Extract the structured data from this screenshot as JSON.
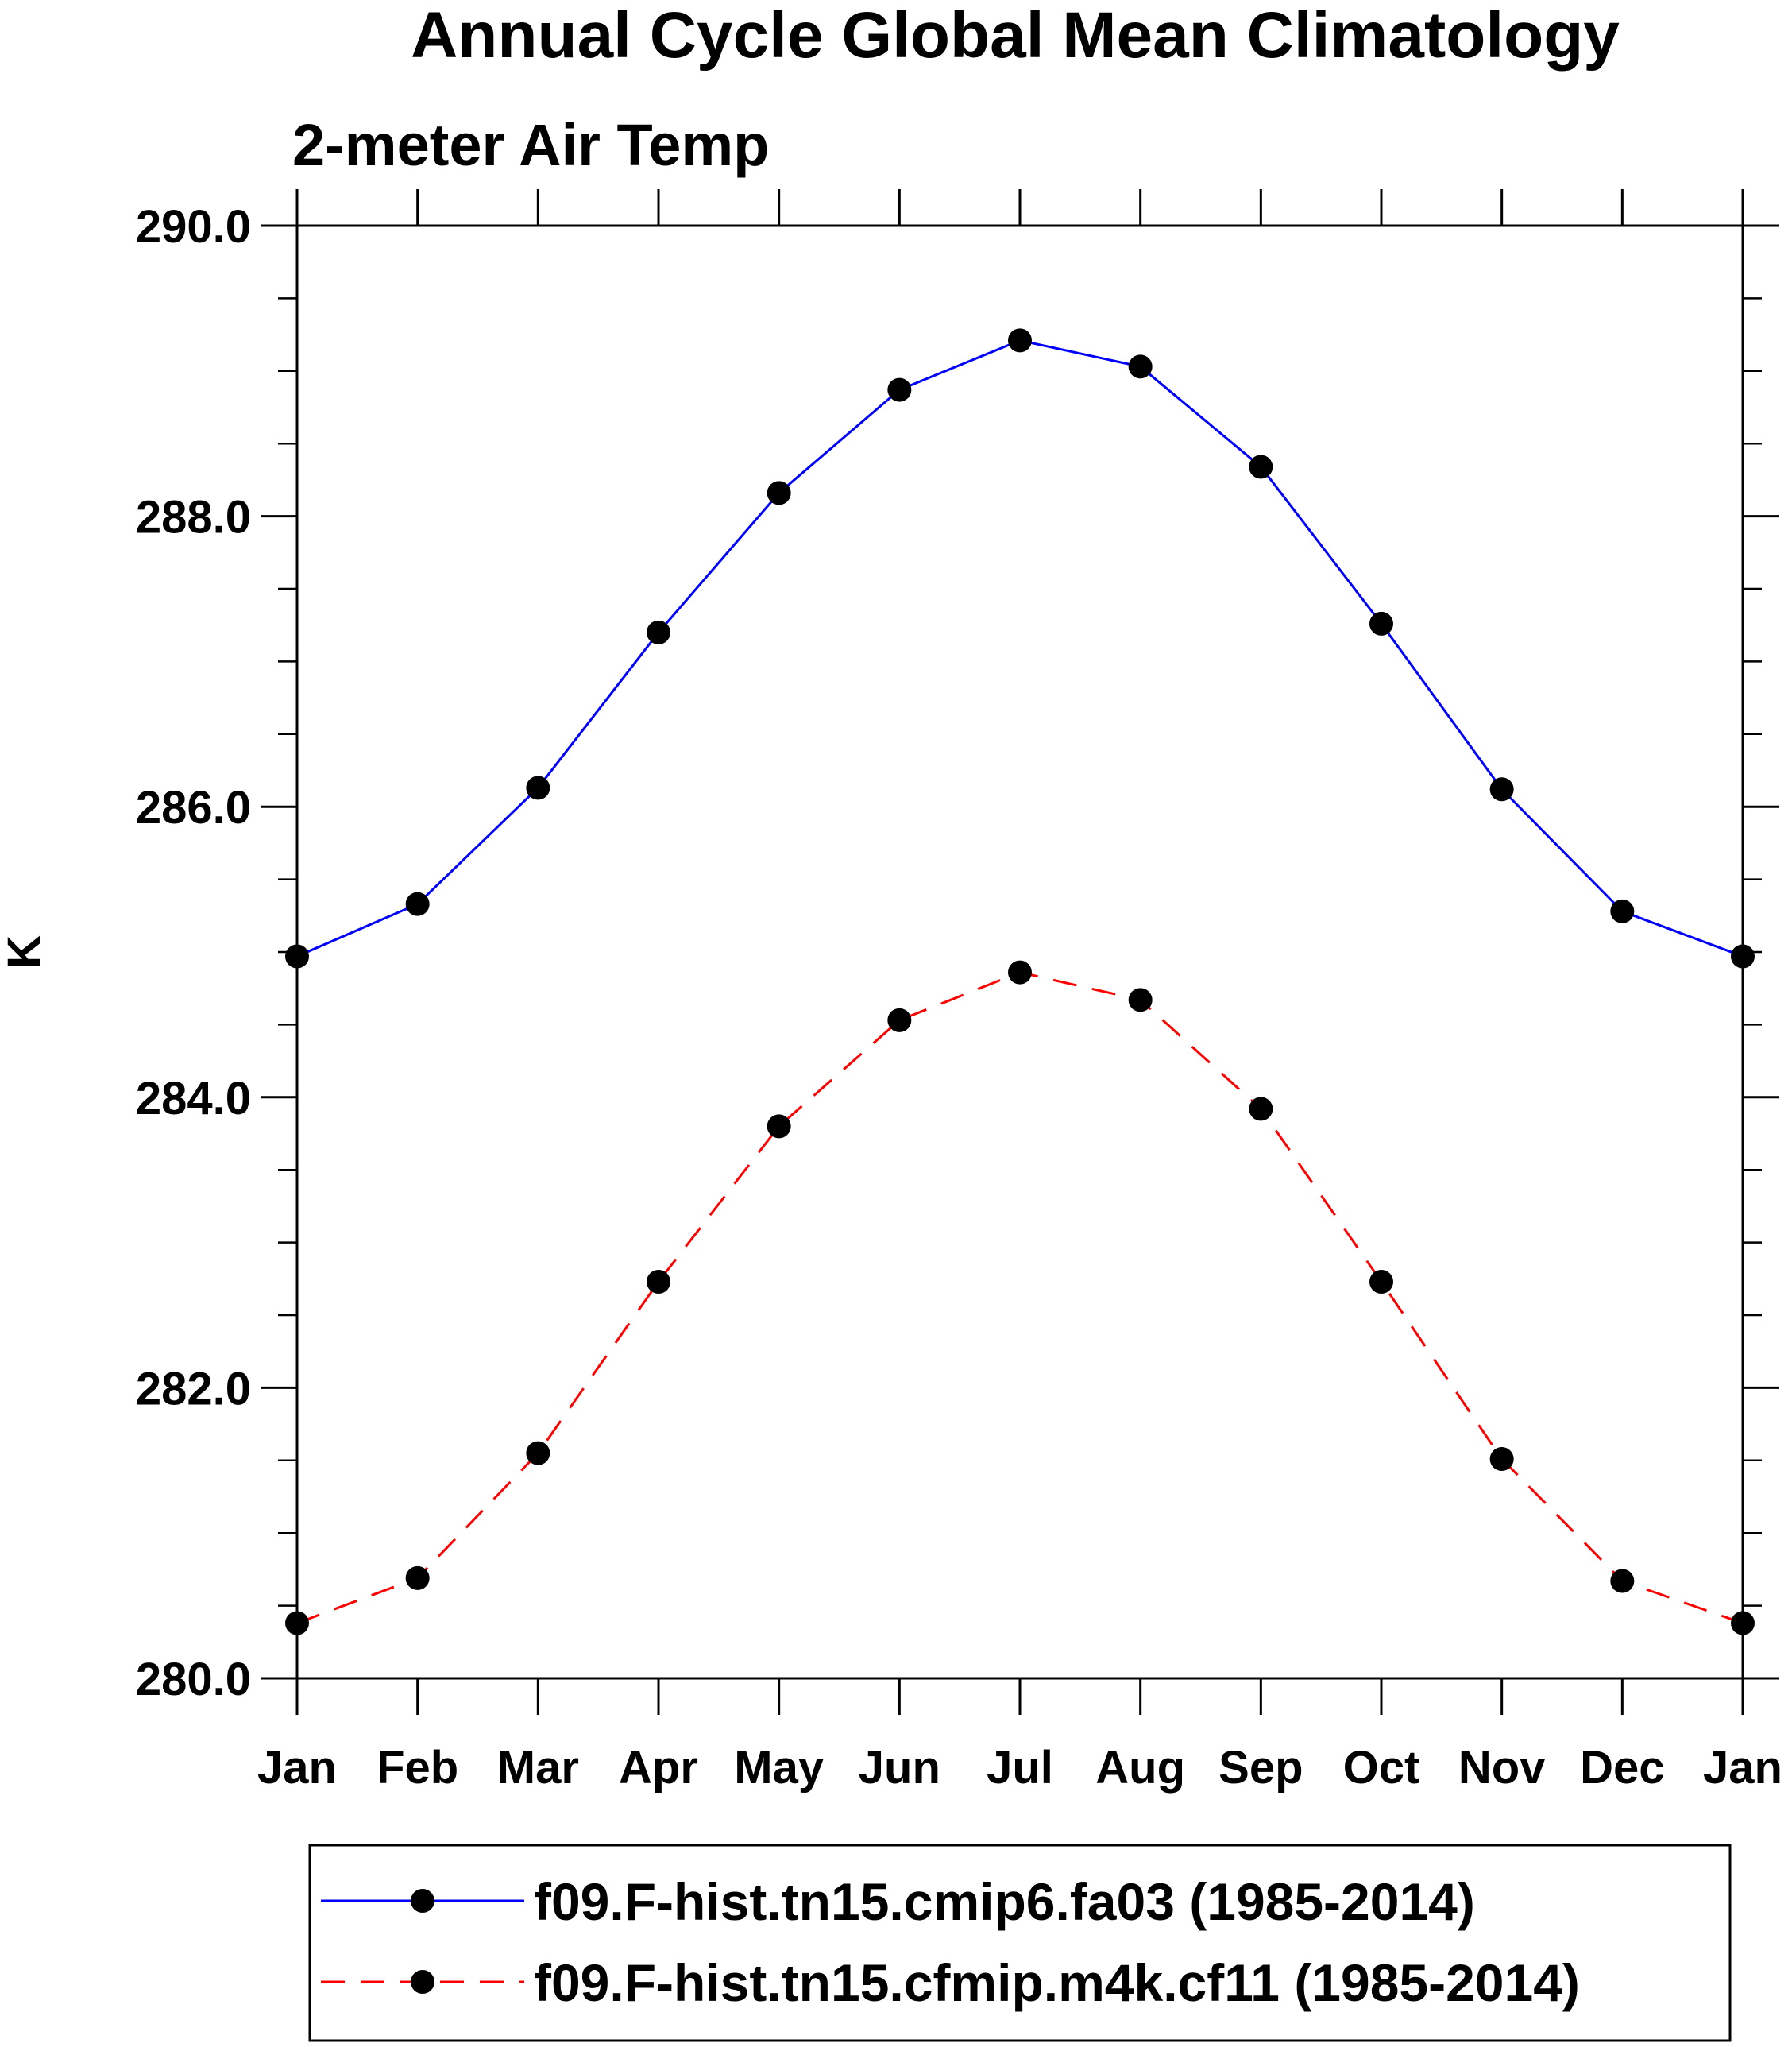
{
  "chart_data": {
    "type": "line",
    "title": "Annual Cycle Global Mean Climatology",
    "subtitle": "2-meter Air Temp",
    "xlabel": "",
    "ylabel": "K",
    "categories": [
      "Jan",
      "Feb",
      "Mar",
      "Apr",
      "May",
      "Jun",
      "Jul",
      "Aug",
      "Sep",
      "Oct",
      "Nov",
      "Dec",
      "Jan"
    ],
    "ylim": [
      280.0,
      290.0
    ],
    "yticks": [
      280.0,
      282.0,
      284.0,
      286.0,
      288.0,
      290.0
    ],
    "ytick_labels": [
      "280.0",
      "282.0",
      "284.0",
      "286.0",
      "288.0",
      "290.0"
    ],
    "y_minor_step": 0.5,
    "grid": false,
    "legend_position": "bottom",
    "series": [
      {
        "name": "f09.F-hist.tn15.cmip6.fa03 (1985-2014)",
        "color": "#0000ff",
        "line_style": "solid",
        "marker": "filled-circle",
        "marker_color": "#000000",
        "values": [
          284.97,
          285.33,
          286.13,
          287.2,
          288.16,
          288.87,
          289.21,
          289.03,
          288.34,
          287.26,
          286.12,
          285.28,
          284.97
        ]
      },
      {
        "name": "f09.F-hist.tn15.cfmip.m4k.cf11 (1985-2014)",
        "color": "#ff0000",
        "line_style": "dashed",
        "marker": "filled-circle",
        "marker_color": "#000000",
        "values": [
          280.38,
          280.69,
          281.55,
          282.73,
          283.8,
          284.53,
          284.86,
          284.67,
          283.92,
          282.73,
          281.51,
          280.67,
          280.38
        ]
      }
    ]
  }
}
